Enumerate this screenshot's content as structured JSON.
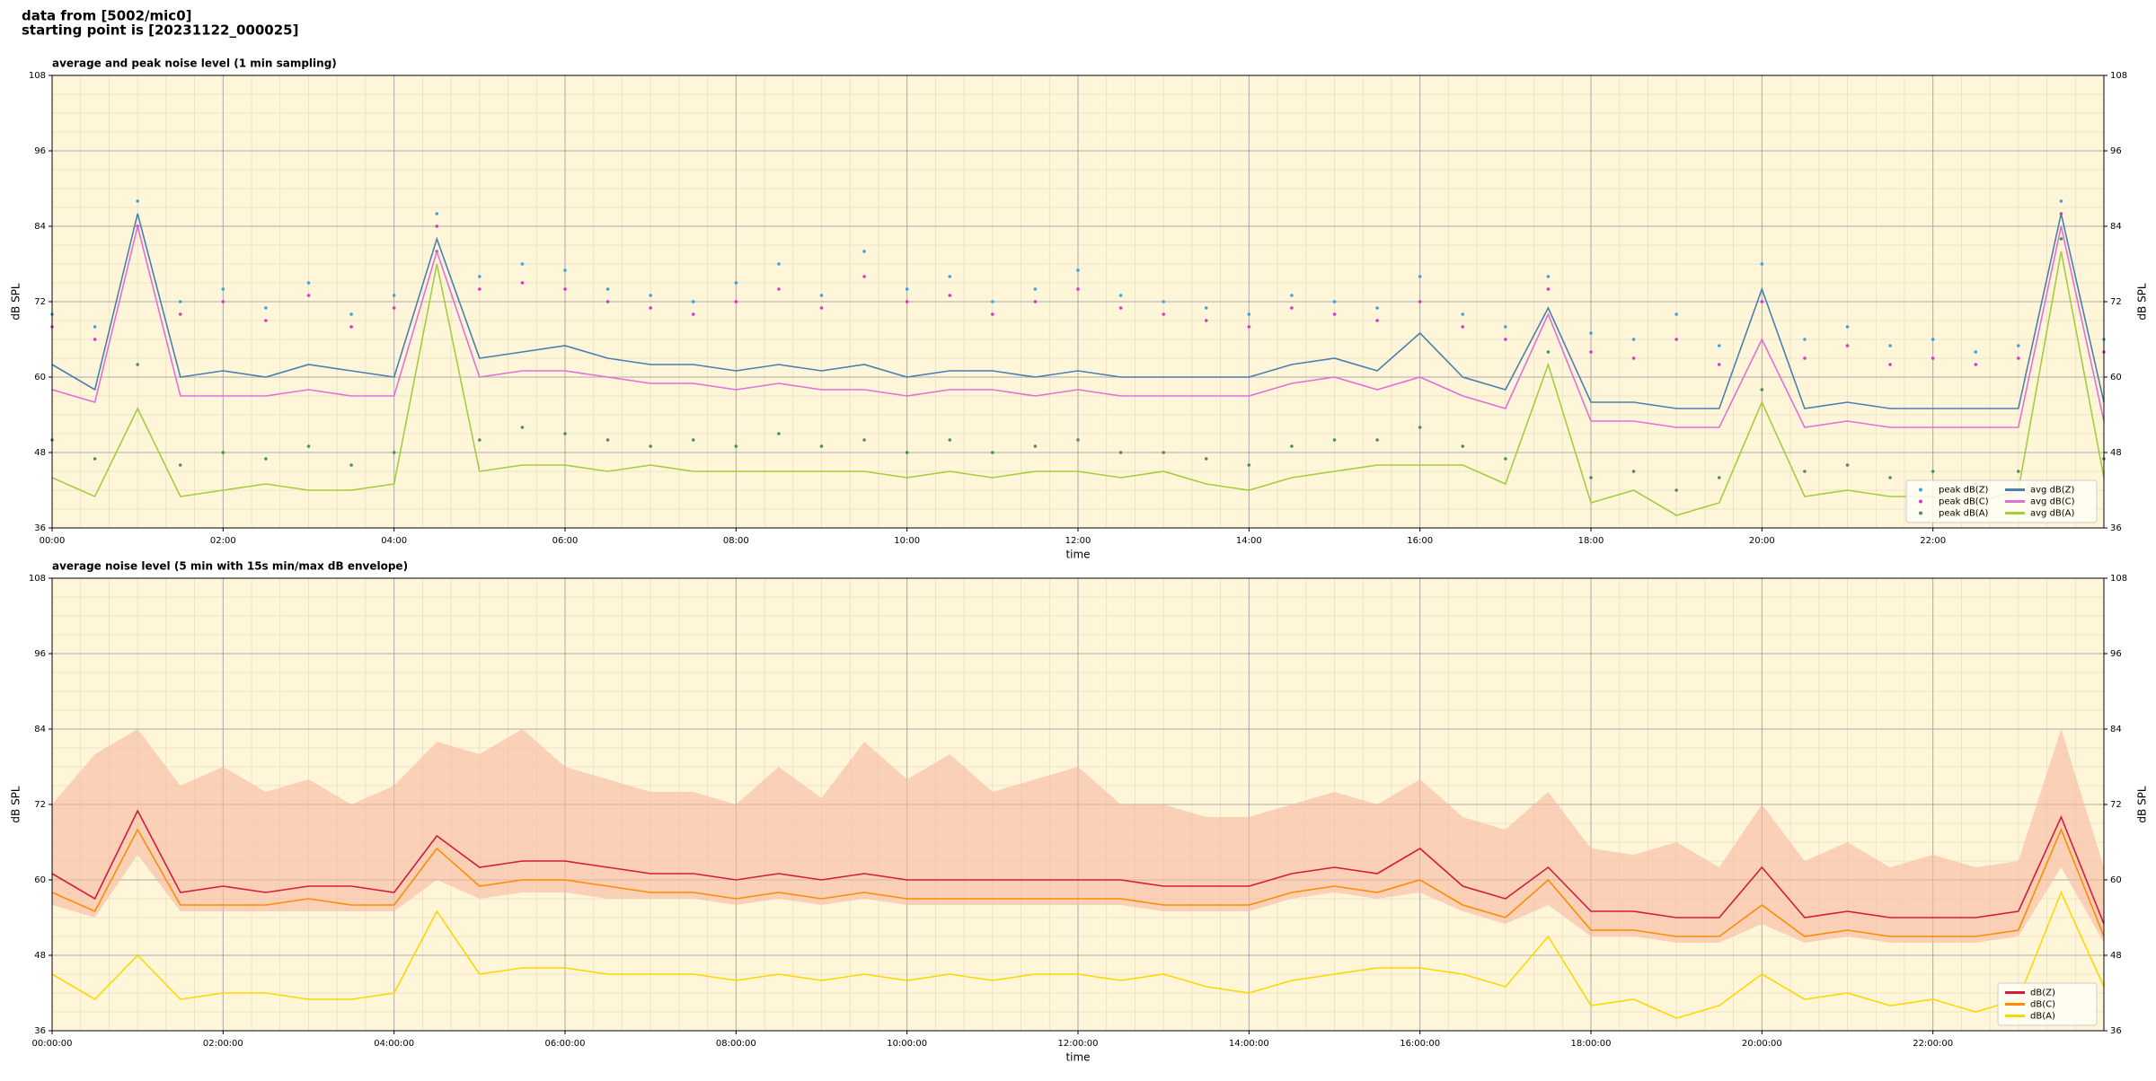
{
  "header": {
    "lines": [
      "data from [5002/mic0]",
      "starting point is [20231122_000025]"
    ]
  },
  "chart_data": [
    {
      "type": "line",
      "title": "average and peak noise level (1 min sampling)",
      "xlabel": "time",
      "ylabel": "dB SPL",
      "xlim": [
        0,
        24
      ],
      "ylim": [
        36,
        108
      ],
      "yticks": [
        36,
        48,
        60,
        72,
        84,
        96,
        108
      ],
      "xticks": [
        {
          "value": 0,
          "label": "00:00"
        },
        {
          "value": 2,
          "label": "02:00"
        },
        {
          "value": 4,
          "label": "04:00"
        },
        {
          "value": 6,
          "label": "06:00"
        },
        {
          "value": 8,
          "label": "08:00"
        },
        {
          "value": 10,
          "label": "10:00"
        },
        {
          "value": 12,
          "label": "12:00"
        },
        {
          "value": 14,
          "label": "14:00"
        },
        {
          "value": 16,
          "label": "16:00"
        },
        {
          "value": 18,
          "label": "18:00"
        },
        {
          "value": 20,
          "label": "20:00"
        },
        {
          "value": 22,
          "label": "22:00"
        }
      ],
      "grid": true,
      "legend": "lower right",
      "legend_columns": 2,
      "x": [
        0,
        0.5,
        1,
        1.5,
        2,
        2.5,
        3,
        3.5,
        4,
        4.5,
        5,
        5.5,
        6,
        6.5,
        7,
        7.5,
        8,
        8.5,
        9,
        9.5,
        10,
        10.5,
        11,
        11.5,
        12,
        12.5,
        13,
        13.5,
        14,
        14.5,
        15,
        15.5,
        16,
        16.5,
        17,
        17.5,
        18,
        18.5,
        19,
        19.5,
        20,
        20.5,
        21,
        21.5,
        22,
        22.5,
        23,
        23.5,
        24
      ],
      "series": [
        {
          "name": "peak dB(Z)",
          "style": "points",
          "color": "#3ba3e0",
          "values": [
            70,
            68,
            88,
            72,
            74,
            71,
            75,
            70,
            73,
            86,
            76,
            78,
            77,
            74,
            73,
            72,
            75,
            78,
            73,
            80,
            74,
            76,
            72,
            74,
            77,
            73,
            72,
            71,
            70,
            73,
            72,
            71,
            76,
            70,
            68,
            76,
            67,
            66,
            70,
            65,
            78,
            66,
            68,
            65,
            66,
            64,
            65,
            88,
            66
          ]
        },
        {
          "name": "peak dB(C)",
          "style": "points",
          "color": "#e033c8",
          "values": [
            68,
            66,
            84,
            70,
            72,
            69,
            73,
            68,
            71,
            84,
            74,
            75,
            74,
            72,
            71,
            70,
            72,
            74,
            71,
            76,
            72,
            73,
            70,
            72,
            74,
            71,
            70,
            69,
            68,
            71,
            70,
            69,
            72,
            68,
            66,
            74,
            64,
            63,
            66,
            62,
            72,
            63,
            65,
            62,
            63,
            62,
            63,
            86,
            64
          ]
        },
        {
          "name": "peak dB(A)",
          "style": "points",
          "color": "#4f8f55",
          "values": [
            50,
            47,
            62,
            46,
            48,
            47,
            49,
            46,
            48,
            80,
            50,
            52,
            51,
            50,
            49,
            50,
            49,
            51,
            49,
            50,
            48,
            50,
            48,
            49,
            50,
            48,
            48,
            47,
            46,
            49,
            50,
            50,
            52,
            49,
            47,
            64,
            44,
            45,
            42,
            44,
            58,
            45,
            46,
            44,
            45,
            43,
            45,
            82,
            47
          ]
        },
        {
          "name": "avg dB(Z)",
          "style": "line",
          "color": "#4a7fb0",
          "values": [
            62,
            58,
            86,
            60,
            61,
            60,
            62,
            61,
            60,
            82,
            63,
            64,
            65,
            63,
            62,
            62,
            61,
            62,
            61,
            62,
            60,
            61,
            61,
            60,
            61,
            60,
            60,
            60,
            60,
            62,
            63,
            61,
            67,
            60,
            58,
            71,
            56,
            56,
            55,
            55,
            74,
            55,
            56,
            55,
            55,
            55,
            55,
            86,
            56
          ]
        },
        {
          "name": "avg dB(C)",
          "style": "line",
          "color": "#e070d8",
          "values": [
            58,
            56,
            84,
            57,
            57,
            57,
            58,
            57,
            57,
            80,
            60,
            61,
            61,
            60,
            59,
            59,
            58,
            59,
            58,
            58,
            57,
            58,
            58,
            57,
            58,
            57,
            57,
            57,
            57,
            59,
            60,
            58,
            60,
            57,
            55,
            70,
            53,
            53,
            52,
            52,
            66,
            52,
            53,
            52,
            52,
            52,
            52,
            84,
            53
          ]
        },
        {
          "name": "avg dB(A)",
          "style": "line",
          "color": "#a5cc3c",
          "values": [
            44,
            41,
            55,
            41,
            42,
            43,
            42,
            42,
            43,
            78,
            45,
            46,
            46,
            45,
            46,
            45,
            45,
            45,
            45,
            45,
            44,
            45,
            44,
            45,
            45,
            44,
            45,
            43,
            42,
            44,
            45,
            46,
            46,
            46,
            43,
            62,
            40,
            42,
            38,
            40,
            56,
            41,
            42,
            41,
            41,
            40,
            42,
            80,
            44
          ]
        }
      ]
    },
    {
      "type": "line",
      "title": "average noise level (5 min with 15s min/max dB envelope)",
      "xlabel": "time",
      "ylabel": "dB SPL",
      "xlim": [
        0,
        24
      ],
      "ylim": [
        36,
        108
      ],
      "yticks": [
        36,
        48,
        60,
        72,
        84,
        96,
        108
      ],
      "xticks": [
        {
          "value": 0,
          "label": "00:00:00"
        },
        {
          "value": 2,
          "label": "02:00:00"
        },
        {
          "value": 4,
          "label": "04:00:00"
        },
        {
          "value": 6,
          "label": "06:00:00"
        },
        {
          "value": 8,
          "label": "08:00:00"
        },
        {
          "value": 10,
          "label": "10:00:00"
        },
        {
          "value": 12,
          "label": "12:00:00"
        },
        {
          "value": 14,
          "label": "14:00:00"
        },
        {
          "value": 16,
          "label": "16:00:00"
        },
        {
          "value": 18,
          "label": "18:00:00"
        },
        {
          "value": 20,
          "label": "20:00:00"
        },
        {
          "value": 22,
          "label": "22:00:00"
        }
      ],
      "grid": true,
      "legend": "lower right",
      "legend_columns": 1,
      "x": [
        0,
        0.5,
        1,
        1.5,
        2,
        2.5,
        3,
        3.5,
        4,
        4.5,
        5,
        5.5,
        6,
        6.5,
        7,
        7.5,
        8,
        8.5,
        9,
        9.5,
        10,
        10.5,
        11,
        11.5,
        12,
        12.5,
        13,
        13.5,
        14,
        14.5,
        15,
        15.5,
        16,
        16.5,
        17,
        17.5,
        18,
        18.5,
        19,
        19.5,
        20,
        20.5,
        21,
        21.5,
        22,
        22.5,
        23,
        23.5,
        24
      ],
      "envelope": {
        "color": "#f7b9a0",
        "max": [
          72,
          80,
          84,
          75,
          78,
          74,
          76,
          72,
          75,
          82,
          80,
          84,
          78,
          76,
          74,
          74,
          72,
          78,
          73,
          82,
          76,
          80,
          74,
          76,
          78,
          72,
          72,
          70,
          70,
          72,
          74,
          72,
          76,
          70,
          68,
          74,
          65,
          64,
          66,
          62,
          72,
          63,
          66,
          62,
          64,
          62,
          63,
          84,
          62
        ],
        "min": [
          56,
          54,
          64,
          55,
          55,
          55,
          55,
          55,
          55,
          60,
          57,
          58,
          58,
          57,
          57,
          57,
          56,
          57,
          56,
          57,
          56,
          56,
          56,
          56,
          56,
          56,
          55,
          55,
          55,
          57,
          58,
          57,
          58,
          55,
          53,
          56,
          51,
          51,
          50,
          50,
          53,
          50,
          51,
          50,
          50,
          50,
          51,
          62,
          50
        ]
      },
      "series": [
        {
          "name": "dB(Z)",
          "style": "line",
          "color": "#d61a3c",
          "values": [
            61,
            57,
            71,
            58,
            59,
            58,
            59,
            59,
            58,
            67,
            62,
            63,
            63,
            62,
            61,
            61,
            60,
            61,
            60,
            61,
            60,
            60,
            60,
            60,
            60,
            60,
            59,
            59,
            59,
            61,
            62,
            61,
            65,
            59,
            57,
            62,
            55,
            55,
            54,
            54,
            62,
            54,
            55,
            54,
            54,
            54,
            55,
            70,
            53
          ]
        },
        {
          "name": "dB(C)",
          "style": "line",
          "color": "#ff8c00",
          "values": [
            58,
            55,
            68,
            56,
            56,
            56,
            57,
            56,
            56,
            65,
            59,
            60,
            60,
            59,
            58,
            58,
            57,
            58,
            57,
            58,
            57,
            57,
            57,
            57,
            57,
            57,
            56,
            56,
            56,
            58,
            59,
            58,
            60,
            56,
            54,
            60,
            52,
            52,
            51,
            51,
            56,
            51,
            52,
            51,
            51,
            51,
            52,
            68,
            51
          ]
        },
        {
          "name": "dB(A)",
          "style": "line",
          "color": "#ffd700",
          "values": [
            45,
            41,
            48,
            41,
            42,
            42,
            41,
            41,
            42,
            55,
            45,
            46,
            46,
            45,
            45,
            45,
            44,
            45,
            44,
            45,
            44,
            45,
            44,
            45,
            45,
            44,
            45,
            43,
            42,
            44,
            45,
            46,
            46,
            45,
            43,
            51,
            40,
            41,
            38,
            40,
            45,
            41,
            42,
            40,
            41,
            39,
            41,
            58,
            43
          ]
        }
      ]
    }
  ]
}
